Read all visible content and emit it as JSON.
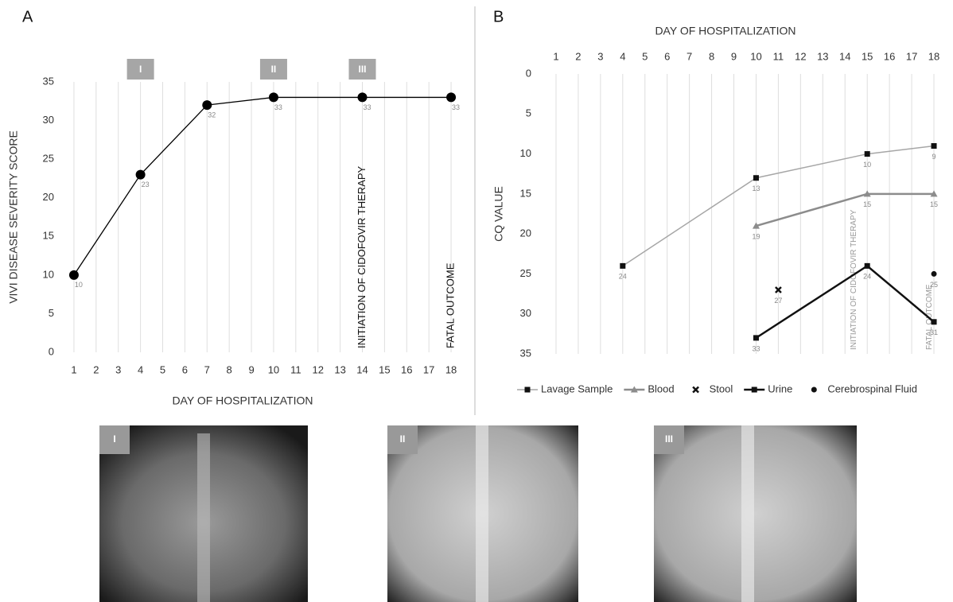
{
  "figure_labels": {
    "panels": [
      "A",
      "B"
    ],
    "images": [
      "I",
      "II",
      "III"
    ]
  },
  "chart_data": [
    {
      "type": "line",
      "x_label": "DAY OF HOSPITALIZATION",
      "y_label": "VIVI DISEASE SEVERITY SCORE",
      "xlim": [
        0.5,
        18.5
      ],
      "xticks": [
        1,
        2,
        3,
        4,
        5,
        6,
        7,
        8,
        9,
        10,
        11,
        12,
        13,
        14,
        15,
        16,
        17,
        18
      ],
      "ylim": [
        0,
        35
      ],
      "yticks": [
        0,
        5,
        10,
        15,
        20,
        25,
        30,
        35
      ],
      "grid": "x",
      "xaxis_position": "bottom",
      "series": [
        {
          "color": "#000000",
          "marker": "circle",
          "line_width": 1.3,
          "x": [
            1,
            4,
            7,
            10,
            14,
            18
          ],
          "values": [
            10,
            23,
            32,
            33,
            33,
            33
          ]
        }
      ],
      "phase_markers": [
        {
          "x": 4,
          "label": "I"
        },
        {
          "x": 10,
          "label": "II"
        },
        {
          "x": 14,
          "label": "III"
        }
      ],
      "annotations": [
        {
          "x": 14,
          "text": "INITIATION OF CIDOFOVIR THERAPY"
        },
        {
          "x": 18,
          "text": "FATAL OUTCOME"
        }
      ]
    },
    {
      "type": "line",
      "x_label": "DAY OF HOSPITALIZATION",
      "y_label": "CQ VALUE",
      "xlim": [
        0.5,
        18.5
      ],
      "xticks": [
        1,
        2,
        3,
        4,
        5,
        6,
        7,
        8,
        9,
        10,
        11,
        12,
        13,
        14,
        15,
        16,
        17,
        18
      ],
      "ylim": [
        35,
        0
      ],
      "yticks": [
        0,
        5,
        10,
        15,
        20,
        25,
        30,
        35
      ],
      "grid": "x",
      "xaxis_position": "top",
      "legend": "bottom",
      "series": [
        {
          "name": "Lavage Sample",
          "color": "#a6a6a6",
          "marker_color": "#111111",
          "marker": "square",
          "line_width": 1.5,
          "x": [
            4,
            10,
            15,
            18
          ],
          "values": [
            24,
            13,
            10,
            9
          ]
        },
        {
          "name": "Blood",
          "color": "#8c8c8c",
          "marker_color": "#8c8c8c",
          "marker": "triangle",
          "line_width": 2.5,
          "x": [
            10,
            15,
            18
          ],
          "values": [
            19,
            15,
            15
          ]
        },
        {
          "name": "Stool",
          "color": "#111111",
          "marker_color": "#111111",
          "marker": "x",
          "line_width": 0,
          "x": [
            11
          ],
          "values": [
            27
          ]
        },
        {
          "name": "Urine",
          "color": "#111111",
          "marker_color": "#111111",
          "marker": "square",
          "line_width": 2.5,
          "x": [
            10,
            15,
            18
          ],
          "values": [
            33,
            24,
            31
          ]
        },
        {
          "name": "Cerebrospinal Fluid",
          "color": "#111111",
          "marker_color": "#111111",
          "marker": "circle",
          "line_width": 0,
          "x": [
            18
          ],
          "values": [
            25
          ]
        }
      ],
      "annotations": [
        {
          "x": 14.4,
          "text": "INITIATION OF CIDOFOVIR THERAPY"
        },
        {
          "x": 17.8,
          "text": "FATAL OUTCOME"
        }
      ]
    }
  ]
}
